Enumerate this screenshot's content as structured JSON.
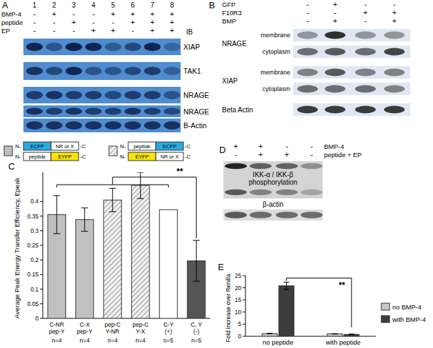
{
  "panels": [
    {
      "letter": "A",
      "lane_numbers": [
        "1",
        "2",
        "3",
        "4",
        "5",
        "6",
        "7",
        "8"
      ],
      "conditions": [
        {
          "label": "BMP-4",
          "signs": [
            "-",
            "+",
            "-",
            "-",
            "+",
            "+",
            "+",
            "+"
          ]
        },
        {
          "label": "peptide",
          "signs": [
            "-",
            "-",
            "+",
            "-",
            "-",
            "+",
            "+",
            "+"
          ]
        },
        {
          "label": "EP",
          "signs": [
            "-",
            "-",
            "-",
            "+",
            "+",
            "-",
            "+",
            "+"
          ]
        }
      ],
      "blot_label": "IB",
      "rows": [
        {
          "label": "XIAP",
          "intensity": [
            0.9,
            0.5,
            0.95,
            0.9,
            0.45,
            0.6,
            0.9,
            0.35
          ]
        },
        {
          "label": "TAK1",
          "intensity": [
            0.8,
            0.6,
            0.9,
            0.5,
            0.5,
            0.6,
            0.7,
            0.4
          ]
        },
        {
          "label": "NRAGE",
          "intensity": [
            0.7,
            0.8,
            0.7,
            0.7,
            0.6,
            0.7,
            0.7,
            0.5
          ]
        },
        {
          "label": "NRAGE",
          "intensity": [
            0.8,
            0.7,
            0.8,
            0.7,
            0.7,
            0.8,
            0.7,
            0.6
          ]
        },
        {
          "label": "B-Actin",
          "intensity": [
            0.8,
            0.8,
            0.8,
            0.8,
            0.8,
            0.8,
            0.8,
            0.8
          ]
        }
      ]
    },
    {
      "letter": "B",
      "conditions": [
        {
          "label": "GFP",
          "signs": [
            "-",
            "+",
            "-",
            "-"
          ]
        },
        {
          "label": "F10R3",
          "signs": [
            "-",
            "-",
            "+",
            "+"
          ]
        },
        {
          "label": "BMP",
          "signs": [
            "-",
            "+",
            "-",
            "+"
          ]
        }
      ],
      "groups": [
        {
          "label": "NRAGE",
          "rows": [
            {
              "label": "membrane",
              "intensity": [
                0.4,
                0.9,
                0.4,
                0.4
              ]
            },
            {
              "label": "cytoplasm",
              "intensity": [
                0.6,
                0.7,
                0.6,
                0.8
              ]
            }
          ]
        },
        {
          "label": "XIAP",
          "rows": [
            {
              "label": "membrane",
              "intensity": [
                0.5,
                0.7,
                0.5,
                0.5
              ]
            },
            {
              "label": "cytoplasm",
              "intensity": [
                0.6,
                0.6,
                0.6,
                0.5
              ]
            }
          ]
        },
        {
          "label": "Beta Actin",
          "rows": [
            {
              "intensity": [
                0.85,
                0.85,
                0.85,
                0.85
              ]
            }
          ]
        }
      ]
    },
    {
      "letter": "D",
      "conditions": [
        {
          "label": "BMP-4",
          "signs": [
            "+",
            "+",
            "-",
            "-"
          ]
        },
        {
          "label": "peptide + EP",
          "signs": [
            "-",
            "+",
            "+",
            "-"
          ]
        }
      ],
      "rows": [
        {
          "label_lines": [
            "IKK-α / IKK-β",
            "phosphorylation"
          ],
          "intensity": [
            0.9,
            0.6,
            0.6,
            0.35
          ]
        },
        {
          "label_lines": [
            "β-actin"
          ],
          "intensity": [
            0.7,
            0.6,
            0.6,
            0.6
          ]
        }
      ]
    }
  ],
  "chart_data": [
    {
      "type": "bar",
      "panel_label": "C",
      "y_label": "Average Peak Energy Transfer Efficiency, Epeak",
      "categories": [
        "C-NR\npep-Y",
        "C-X\npep-Y",
        "pep-C\nY-NR",
        "pep-C\nY-X",
        "C-Y\n(+)",
        "C, Y\n(-)"
      ],
      "sample_sizes": [
        "n=4",
        "n=4",
        "n=4",
        "n=4",
        "n=5",
        "n=5"
      ],
      "values": [
        0.355,
        0.338,
        0.405,
        0.455,
        0.372,
        0.197
      ],
      "errors": [
        0.065,
        0.04,
        0.04,
        0.045,
        null,
        0.07
      ],
      "colors": [
        "#c0c0c0",
        "#c0c0c0",
        "#f0f0f0",
        "#f0f0f0",
        "#ffffff",
        "#555555"
      ],
      "ylim": [
        0,
        0.5
      ],
      "yticks": [
        0,
        0.05,
        0.1,
        0.15,
        0.2,
        0.25,
        0.3,
        0.35,
        0.4
      ],
      "constructs": [
        {
          "color": "#c0c0c0",
          "rows": [
            [
              {
                "text": "ECFP",
                "color": "#29abe2"
              },
              {
                "text": "NR or X",
                "color": "#ffffff"
              }
            ],
            [
              {
                "text": "peptide",
                "color": "#ffffff"
              },
              {
                "text": "EYFP",
                "color": "#f7e600"
              }
            ]
          ]
        },
        {
          "color": "#f0f0f0",
          "rows": [
            [
              {
                "text": "peptide",
                "color": "#ffffff"
              },
              {
                "text": "ECFP",
                "color": "#29abe2"
              }
            ],
            [
              {
                "text": "EYFP",
                "color": "#f7e600"
              },
              {
                "text": "NR or X",
                "color": "#ffffff"
              }
            ]
          ]
        }
      ],
      "terminals": [
        "N-",
        "-C"
      ],
      "significance": {
        "text": "**",
        "groups": [
          0,
          4
        ],
        "versus": 5
      }
    },
    {
      "type": "bar",
      "panel_label": "E",
      "y_label": "Fold Increase over Renilla",
      "categories": [
        "no peptide",
        "with peptide"
      ],
      "series": [
        {
          "name": "no BMP-4",
          "color": "#c8c8c8",
          "values": [
            1.1,
            1.0
          ],
          "errors": [
            0.1,
            0.1
          ]
        },
        {
          "name": "with BMP-4",
          "color": "#3c3c3c",
          "values": [
            20.8,
            0.8
          ],
          "errors": [
            1.5,
            0.1
          ]
        }
      ],
      "ylim": [
        0,
        25
      ],
      "yticks": [
        0,
        5,
        10,
        15,
        20,
        25
      ],
      "legend": "right",
      "significance": {
        "text": "**",
        "series": 1,
        "categories": [
          0,
          1
        ]
      }
    }
  ]
}
